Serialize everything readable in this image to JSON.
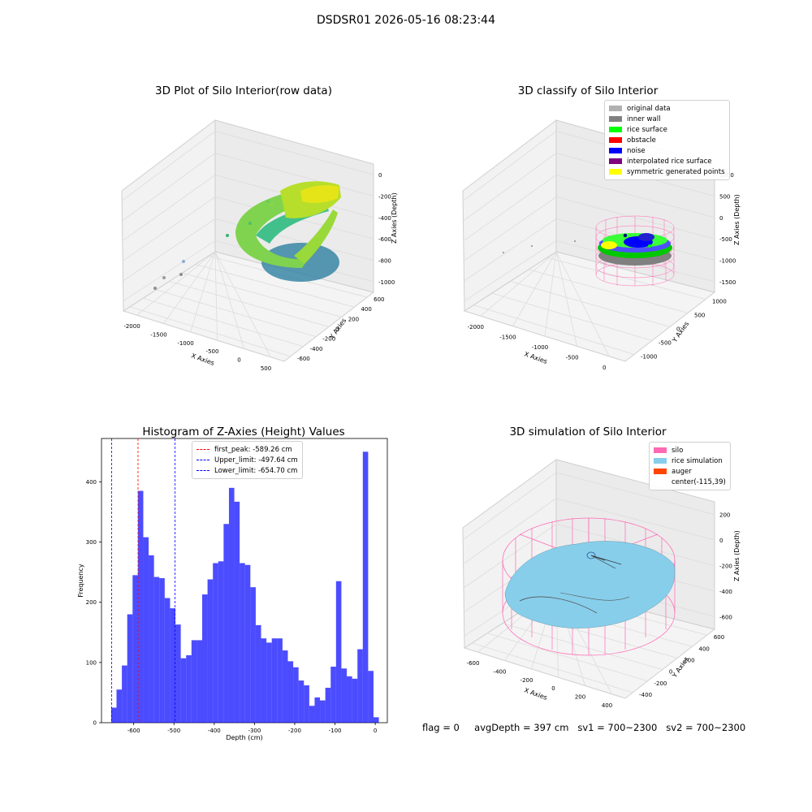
{
  "figure_title": "DSDSR01 2026-05-16 08:23:44",
  "panels": {
    "raw": {
      "title": "3D Plot of Silo Interior(row data)",
      "xlabel": "X Axies",
      "ylabel": "Y Axies",
      "zlabel": "Z Axies (Depth)",
      "xticks": [
        "-2000",
        "-1500",
        "-1000",
        "-500",
        "0",
        "500"
      ],
      "yticks": [
        "-600",
        "-400",
        "-200",
        "0",
        "200",
        "400",
        "600"
      ],
      "zticks": [
        "0",
        "-200",
        "-400",
        "-600",
        "-800",
        "-1000"
      ]
    },
    "classify": {
      "title": "3D classify of Silo Interior",
      "xlabel": "X Axies",
      "ylabel": "Y Axies",
      "zlabel": "Z Axies (Depth)",
      "xticks": [
        "-2000",
        "-1500",
        "-1000",
        "-500",
        "0"
      ],
      "yticks": [
        "-1000",
        "-500",
        "0",
        "500",
        "1000"
      ],
      "zticks": [
        "1000",
        "500",
        "0",
        "-500",
        "-1000",
        "-1500"
      ],
      "legend": [
        {
          "label": "original data",
          "color": "#b0b0b0"
        },
        {
          "label": "inner wall",
          "color": "#808080"
        },
        {
          "label": "rice surface",
          "color": "#00ff00"
        },
        {
          "label": "obstacle",
          "color": "#ff0000"
        },
        {
          "label": "noise",
          "color": "#0000ff"
        },
        {
          "label": "interpolated rice surface",
          "color": "#800080"
        },
        {
          "label": "symmetric generated points",
          "color": "#ffff00"
        }
      ]
    },
    "simulation": {
      "title": "3D simulation of Silo Interior",
      "xlabel": "X Axies",
      "ylabel": "Y Axies",
      "zlabel": "Z Axies (Depth)",
      "xticks": [
        "-600",
        "-400",
        "-200",
        "0",
        "200",
        "400"
      ],
      "yticks": [
        "-400",
        "-200",
        "0",
        "200",
        "400",
        "600"
      ],
      "zticks": [
        "200",
        "0",
        "-200",
        "-400",
        "-600"
      ],
      "legend": [
        {
          "label": "silo",
          "color": "#ff69b4"
        },
        {
          "label": "rice simulation",
          "color": "#87ceeb"
        },
        {
          "label": "auger",
          "color": "#ff4500"
        },
        {
          "label": "center(-115,39)",
          "color": ""
        }
      ]
    }
  },
  "status": {
    "flag": "flag = 0",
    "avg_depth": "avgDepth = 397 cm",
    "sv1": "sv1 = 700~2300",
    "sv2": "sv2 = 700~2300"
  },
  "chart_data": [
    {
      "type": "bar",
      "title": "Histogram of Z-Axies (Height) Values",
      "xlabel": "Depth (cm)",
      "ylabel": "Frequency",
      "xlim": [
        -680,
        30
      ],
      "ylim": [
        0,
        472
      ],
      "bar_color": "#0000ff",
      "bin_width": 13.3,
      "bin_start": -656,
      "values": [
        25,
        55,
        95,
        180,
        245,
        385,
        308,
        278,
        242,
        240,
        207,
        190,
        163,
        107,
        112,
        137,
        137,
        213,
        238,
        265,
        268,
        330,
        390,
        367,
        265,
        262,
        225,
        162,
        140,
        133,
        140,
        140,
        120,
        102,
        92,
        70,
        62,
        28,
        42,
        37,
        58,
        93,
        235,
        90,
        77,
        73,
        122,
        450,
        86,
        9
      ],
      "xticks": [
        -600,
        -500,
        -400,
        -300,
        -200,
        -100,
        0
      ],
      "yticks": [
        0,
        100,
        200,
        300,
        400
      ],
      "vlines": [
        {
          "label": "first_peak: -589.26 cm",
          "x": -589.26,
          "color": "#ff0000"
        },
        {
          "label": "Upper_limit: -497.64 cm",
          "x": -497.64,
          "color": "#0000ff"
        },
        {
          "label": "Lower_limit: -654.70 cm",
          "x": -654.7,
          "color": "#0000ff"
        }
      ]
    }
  ]
}
